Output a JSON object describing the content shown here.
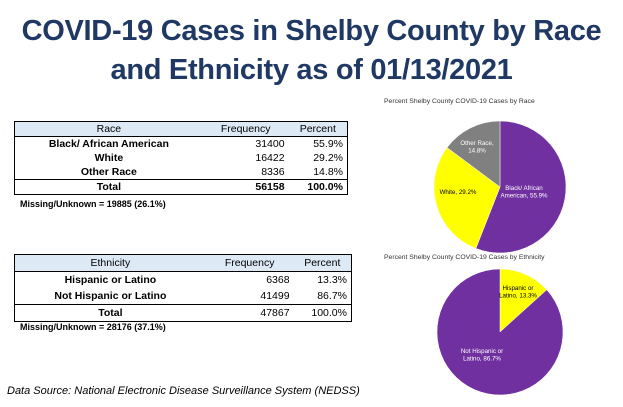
{
  "title": {
    "line1": "COVID-19 Cases in Shelby County by Race",
    "line2": "and Ethnicity as of 01/13/2021"
  },
  "race_table": {
    "headers": [
      "Race",
      "Frequency",
      "Percent"
    ],
    "rows": [
      {
        "label": "Black/ African American",
        "frequency": "31400",
        "percent": "55.9%"
      },
      {
        "label": "White",
        "frequency": "16422",
        "percent": "29.2%"
      },
      {
        "label": "Other Race",
        "frequency": "8336",
        "percent": "14.8%"
      }
    ],
    "total": {
      "label": "Total",
      "frequency": "56158",
      "percent": "100.0%"
    },
    "missing": "Missing/Unknown = 19885 (26.1%)"
  },
  "ethnicity_table": {
    "headers": [
      "Ethnicity",
      "Frequency",
      "Percent"
    ],
    "rows": [
      {
        "label": "Hispanic or Latino",
        "frequency": "6368",
        "percent": "13.3%"
      },
      {
        "label": "Not Hispanic or Latino",
        "frequency": "41499",
        "percent": "86.7%"
      }
    ],
    "total": {
      "label": "Total",
      "frequency": "47867",
      "percent": "100.0%"
    },
    "missing": "Missing/Unknown = 28176 (37.1%)"
  },
  "source": "Data Source: National Electronic Disease Surveillance System (NEDSS)",
  "colors": {
    "title": "#1f3864",
    "purple": "#7030a0",
    "yellow": "#ffff00",
    "gray": "#808080",
    "header_fill": "#dde9f5"
  },
  "chart_data": [
    {
      "type": "pie",
      "title": "Percent Shelby County COVID-19 Cases by Race",
      "slices": [
        {
          "name": "Black/ African American",
          "value": 55.9,
          "label_lines": [
            "Black/ African",
            "American, 55.9%"
          ],
          "color": "#7030a0"
        },
        {
          "name": "White",
          "value": 29.2,
          "label_lines": [
            "White, 29.2%"
          ],
          "color": "#ffff00"
        },
        {
          "name": "Other Race",
          "value": 14.8,
          "label_lines": [
            "Other Race,",
            "14.8%"
          ],
          "color": "#808080"
        }
      ]
    },
    {
      "type": "pie",
      "title": "Percent Shelby County COVID-19 Cases by Ethnicity",
      "slices": [
        {
          "name": "Hispanic or Latino",
          "value": 13.3,
          "label_lines": [
            "Hispanic or",
            "Latino, 13.3%"
          ],
          "color": "#ffff00"
        },
        {
          "name": "Not Hispanic or Latino",
          "value": 86.7,
          "label_lines": [
            "Not Hispanic or",
            "Latino, 86.7%"
          ],
          "color": "#7030a0"
        }
      ]
    }
  ]
}
